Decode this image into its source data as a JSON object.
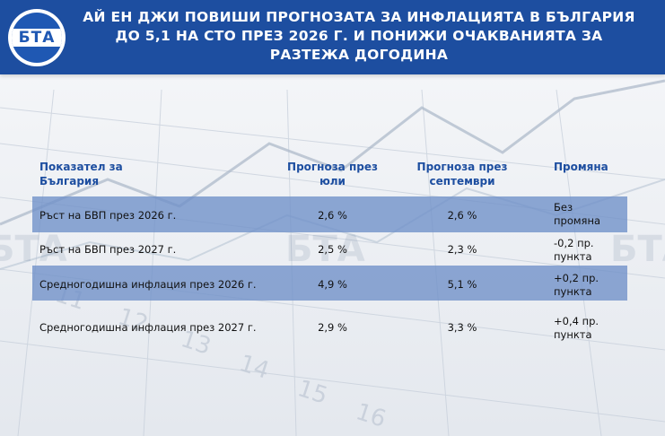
{
  "header": {
    "logo_text": "БТА",
    "title": "АЙ ЕН ДЖИ ПОВИШИ ПРОГНОЗАТА ЗА ИНФЛАЦИЯТА В БЪЛГАРИЯ ДО 5,1 НА СТО ПРЕЗ 2026 Г. И ПОНИЖИ ОЧАКВАНИЯТА ЗА РАЗТЕЖА ДОГОДИНА"
  },
  "table": {
    "columns": [
      "Показател за България",
      "Прогноза през юли",
      "Прогноза през септември",
      "Промяна"
    ],
    "rows": [
      [
        "Ръст на БВП през 2026 г.",
        "2,6 %",
        "2,6 %",
        "Без промяна"
      ],
      [
        "Ръст на БВП през 2027 г.",
        "2,5 %",
        "2,3 %",
        "-0,2 пр. пункта"
      ],
      [
        "Средногодишна инфлация през 2026 г.",
        "4,9 %",
        "5,1 %",
        "+0,2 пр. пункта"
      ],
      [
        "Средногодишна инфлация през 2027 г.",
        "2,9 %",
        "3,3 %",
        "+0,4 пр. пункта"
      ]
    ]
  },
  "watermark": "БТА",
  "colors": {
    "header_bg": "#1d4ea0",
    "header_text": "#1d4ea0",
    "band": "#6e8fc8"
  }
}
